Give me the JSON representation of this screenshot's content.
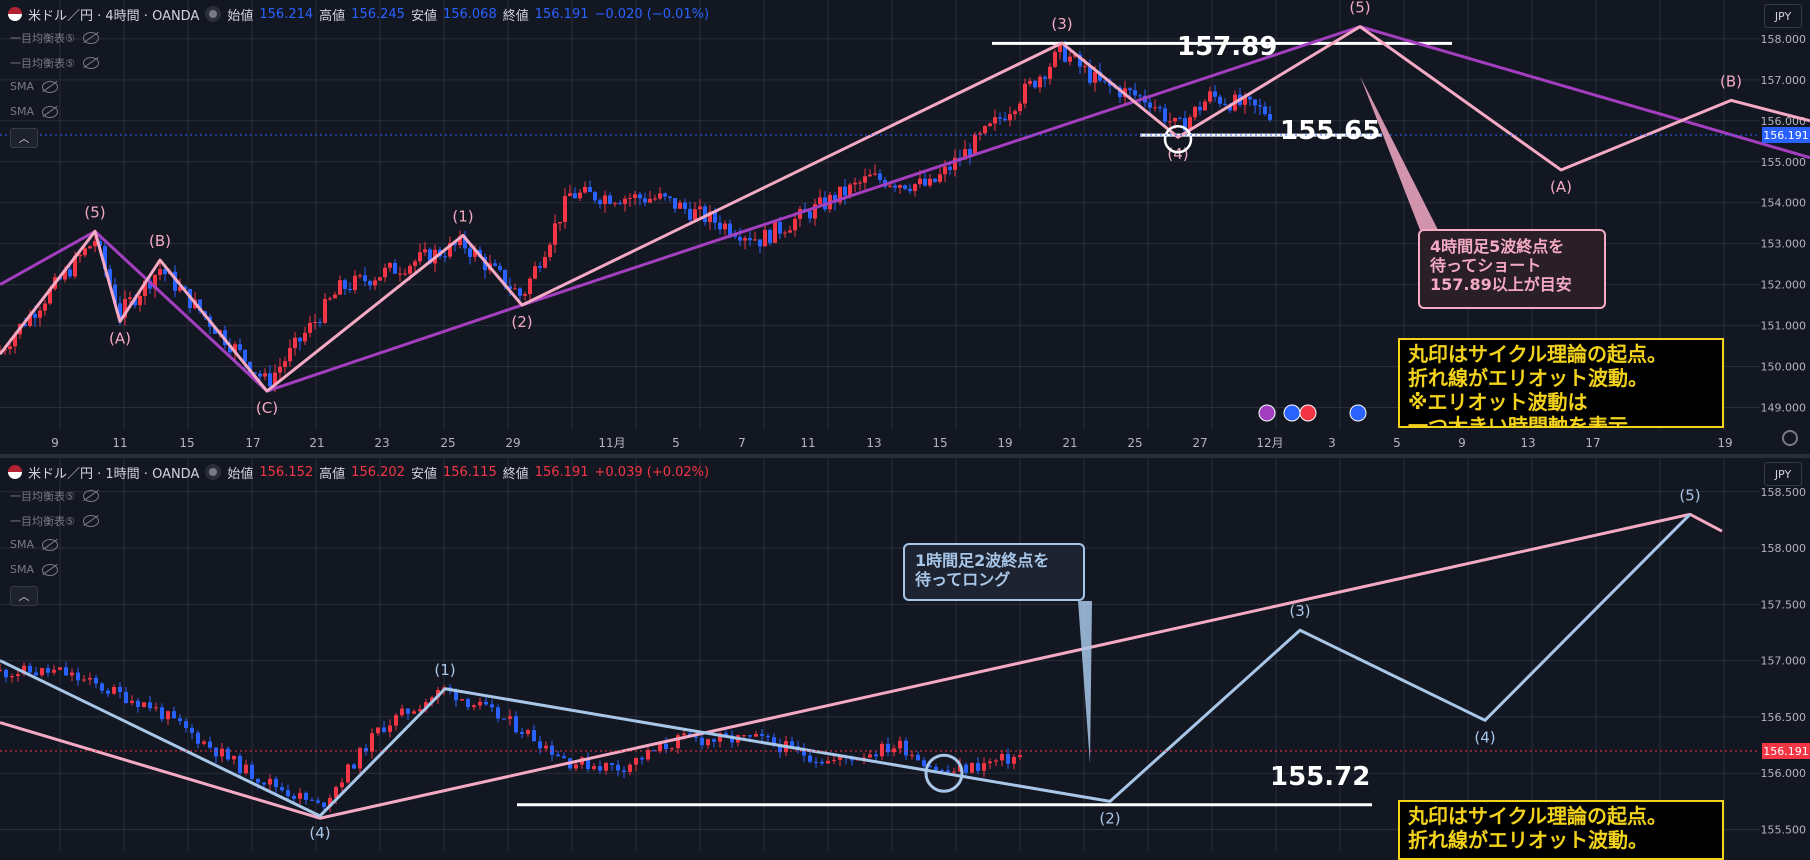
{
  "pane_top": {
    "legend": {
      "symbol": "米ドル／円 · 4時間 · OANDA",
      "open_label": "始値",
      "open": "156.214",
      "high_label": "高値",
      "high": "156.245",
      "low_label": "安値",
      "low": "156.068",
      "close_label": "終値",
      "close": "156.191",
      "change": "−0.020 (−0.01%)"
    },
    "indicators": [
      "一目均衡表⑤",
      "一目均衡表⑤",
      "SMA",
      "SMA"
    ],
    "currency": "JPY",
    "last_price": "156.191",
    "price_labels": [
      {
        "text": "157.89"
      },
      {
        "text": "155.65"
      }
    ],
    "note_pink": "4時間足5波終点を\n待ってショート\n157.89以上が目安",
    "note_yellow": "丸印はサイクル理論の起点。\n折れ線がエリオット波動。\n※エリオット波動は\n一つ大きい時間軸を表示"
  },
  "pane_bottom": {
    "legend": {
      "symbol": "米ドル／円 · 1時間 · OANDA",
      "open_label": "始値",
      "open": "156.152",
      "high_label": "高値",
      "high": "156.202",
      "low_label": "安値",
      "low": "156.115",
      "close_label": "終値",
      "close": "156.191",
      "change": "+0.039 (+0.02%)"
    },
    "indicators": [
      "一目均衡表⑤",
      "一目均衡表⑤",
      "SMA",
      "SMA"
    ],
    "currency": "JPY",
    "last_price": "156.191",
    "price_labels": [
      {
        "text": "155.72"
      }
    ],
    "note_blue": "1時間足2波終点を\n待ってロング",
    "note_yellow": "丸印はサイクル理論の起点。\n折れ線がエリオット波動。"
  },
  "chart_data": [
    {
      "type": "candlestick",
      "title": "米ドル／円 · 4時間 · OANDA",
      "y_ticks": [
        "158.000",
        "157.000",
        "156.000",
        "155.000",
        "154.000",
        "153.000",
        "152.000",
        "151.000",
        "150.000",
        "149.000"
      ],
      "ylim": [
        148.45,
        158.95
      ],
      "x_ticks": [
        "9",
        "11",
        "15",
        "17",
        "21",
        "23",
        "25",
        "29",
        "11月",
        "5",
        "7",
        "11",
        "13",
        "15",
        "19",
        "21",
        "25",
        "27",
        "12月",
        "3",
        "5",
        "9",
        "13",
        "17",
        "19"
      ],
      "elliott_pink": {
        "points": [
          [
            0,
            150.3
          ],
          [
            95,
            153.3
          ],
          [
            120,
            151.1
          ],
          [
            160,
            152.6
          ],
          [
            267,
            149.4
          ],
          [
            463,
            153.2
          ],
          [
            522,
            151.5
          ],
          [
            1062,
            157.9
          ],
          [
            1178,
            155.6
          ],
          [
            1360,
            158.3
          ],
          [
            1561,
            154.8
          ],
          [
            1731,
            156.5
          ],
          [
            1810,
            156.0
          ]
        ],
        "labels": [
          "(5)",
          "(A)",
          "(B)",
          "(C)",
          "(1)",
          "(2)",
          "(3)",
          "(4)",
          "(5)",
          "(A)",
          "(B)"
        ]
      },
      "elliott_purple": {
        "points": [
          [
            0,
            152.0
          ],
          [
            95,
            153.3
          ],
          [
            267,
            149.4
          ],
          [
            522,
            151.5
          ],
          [
            1360,
            158.3
          ],
          [
            1810,
            155.1
          ]
        ]
      },
      "horizontal_lines": [
        157.89,
        155.65
      ],
      "circle": {
        "x": 1178,
        "y": 155.55
      }
    },
    {
      "type": "candlestick",
      "title": "米ドル／円 · 1時間 · OANDA",
      "y_ticks": [
        "158.500",
        "158.000",
        "157.500",
        "157.000",
        "156.500",
        "156.000",
        "155.500"
      ],
      "ylim": [
        155.3,
        158.8
      ],
      "elliott_blue": {
        "points": [
          [
            0,
            157.0
          ],
          [
            320,
            155.62
          ],
          [
            445,
            156.75
          ],
          [
            1110,
            155.75
          ],
          [
            1300,
            157.27
          ],
          [
            1485,
            156.47
          ],
          [
            1690,
            158.3
          ]
        ],
        "labels": [
          "(4)",
          "(1)",
          "(2)",
          "(3)",
          "(4)",
          "(5)"
        ]
      },
      "elliott_pink": {
        "points": [
          [
            0,
            156.45
          ],
          [
            320,
            155.6
          ],
          [
            1690,
            158.3
          ],
          [
            1722,
            158.15
          ]
        ]
      },
      "horizontal_lines": [
        155.72
      ],
      "circle": {
        "x": 944,
        "y": 156.0
      }
    }
  ],
  "colors": {
    "bg": "#131722",
    "grid": "#2a2e39",
    "up": "#f23645",
    "down": "#2962ff",
    "pink": "#f5aac4",
    "purple": "#a33fbf",
    "blue": "#a8c7e8",
    "yellow": "#f2d21b"
  }
}
